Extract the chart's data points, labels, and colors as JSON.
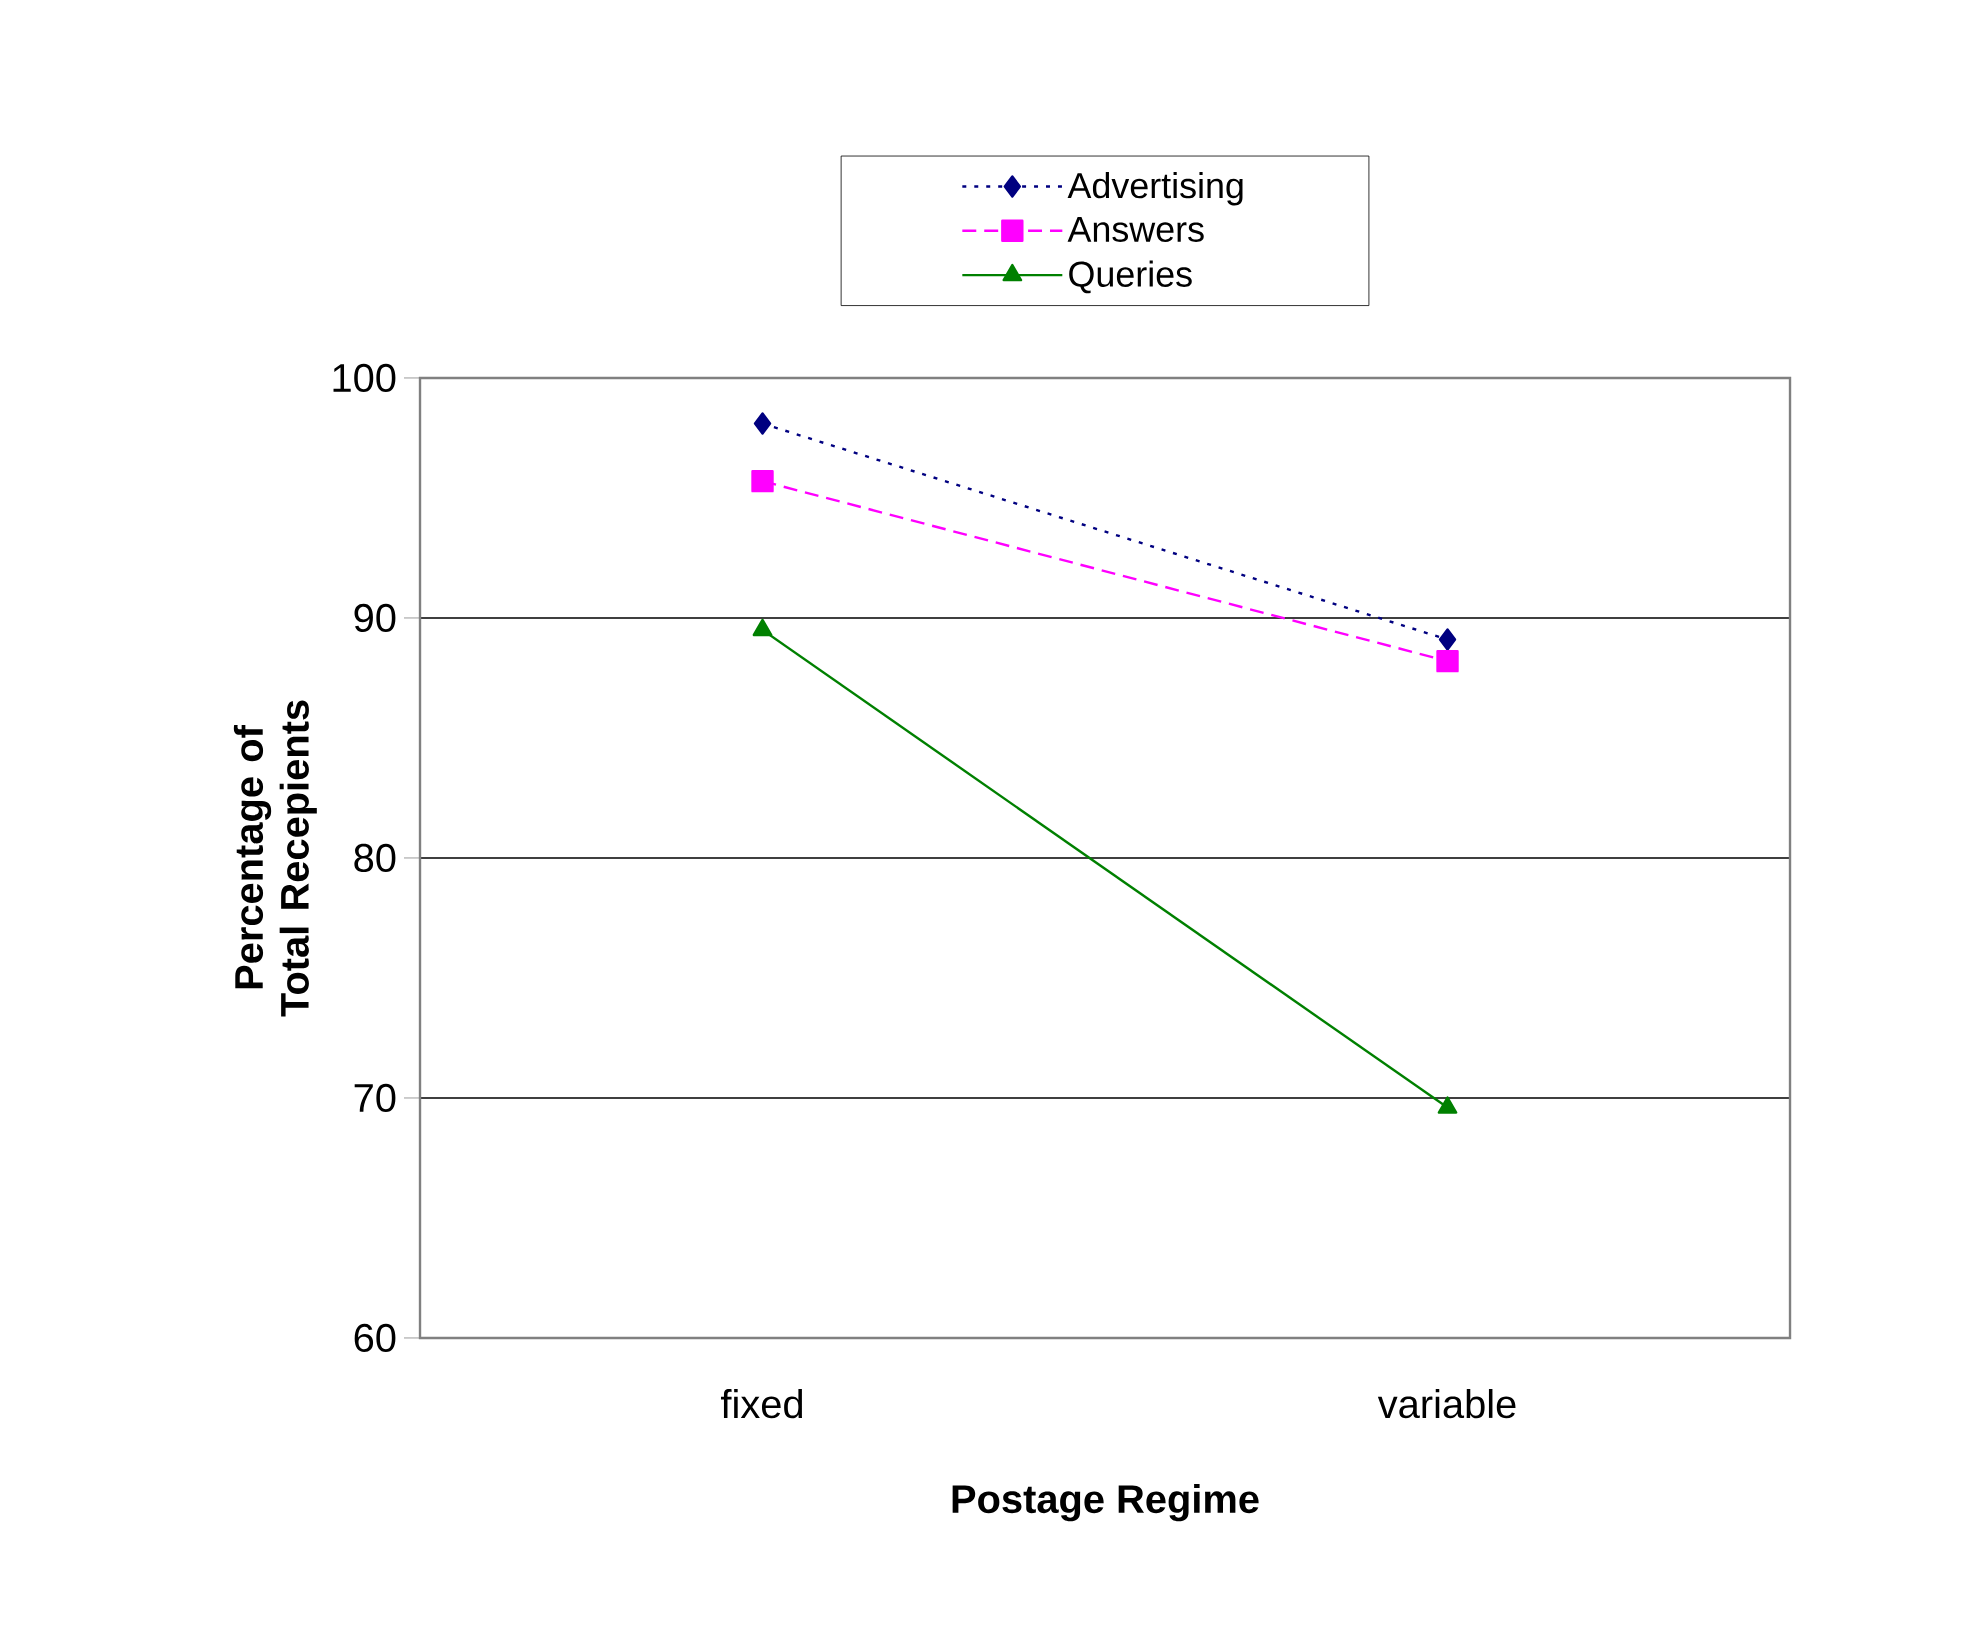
{
  "chart_data": {
    "type": "line",
    "xlabel": "Postage Regime",
    "ylabel": "Percentage of Total Recepients",
    "categories": [
      "fixed",
      "variable"
    ],
    "series": [
      {
        "name": "Advertising",
        "color": "#000080",
        "values": [
          98.1,
          89.1
        ],
        "marker": "diamond",
        "line_style": "dotted"
      },
      {
        "name": "Answers",
        "color": "#ff00ff",
        "values": [
          95.7,
          88.2
        ],
        "marker": "square",
        "line_style": "dashed"
      },
      {
        "name": "Queries",
        "color": "#008000",
        "values": [
          89.5,
          69.6
        ],
        "marker": "triangle",
        "line_style": "solid"
      }
    ],
    "ylim": [
      60,
      100
    ],
    "yticks": [
      60,
      70,
      80,
      90,
      100
    ],
    "grid": "y",
    "legend": "top"
  }
}
